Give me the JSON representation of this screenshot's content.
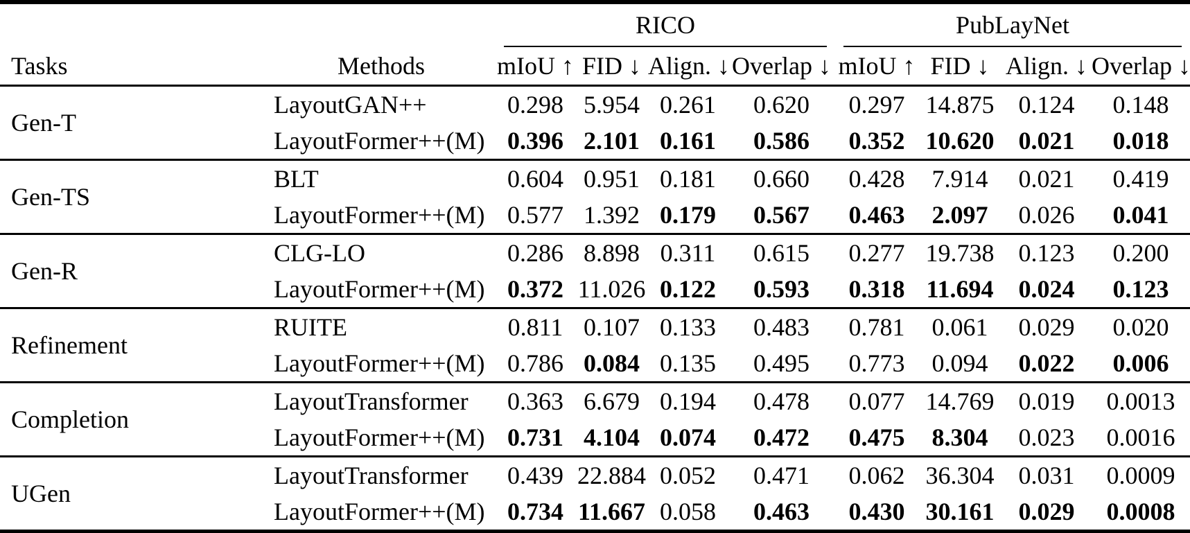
{
  "table": {
    "headers": {
      "tasks": "Tasks",
      "methods": "Methods",
      "rico": "RICO",
      "publaynet": "PubLayNet"
    },
    "metrics": [
      "mIoU ↑",
      "FID ↓",
      "Align. ↓",
      "Overlap ↓"
    ],
    "groups": [
      {
        "task": "Gen-T",
        "rows": [
          {
            "method": "LayoutGAN++",
            "rico": [
              "0.298",
              "5.954",
              "0.261",
              "0.620"
            ],
            "rico_bold": [
              false,
              false,
              false,
              false
            ],
            "publaynet": [
              "0.297",
              "14.875",
              "0.124",
              "0.148"
            ],
            "publaynet_bold": [
              false,
              false,
              false,
              false
            ]
          },
          {
            "method": "LayoutFormer++(M)",
            "rico": [
              "0.396",
              "2.101",
              "0.161",
              "0.586"
            ],
            "rico_bold": [
              true,
              true,
              true,
              true
            ],
            "publaynet": [
              "0.352",
              "10.620",
              "0.021",
              "0.018"
            ],
            "publaynet_bold": [
              true,
              true,
              true,
              true
            ]
          }
        ]
      },
      {
        "task": "Gen-TS",
        "rows": [
          {
            "method": "BLT",
            "rico": [
              "0.604",
              "0.951",
              "0.181",
              "0.660"
            ],
            "rico_bold": [
              false,
              false,
              false,
              false
            ],
            "publaynet": [
              "0.428",
              "7.914",
              "0.021",
              "0.419"
            ],
            "publaynet_bold": [
              false,
              false,
              false,
              false
            ]
          },
          {
            "method": "LayoutFormer++(M)",
            "rico": [
              "0.577",
              "1.392",
              "0.179",
              "0.567"
            ],
            "rico_bold": [
              false,
              false,
              true,
              true
            ],
            "publaynet": [
              "0.463",
              "2.097",
              "0.026",
              "0.041"
            ],
            "publaynet_bold": [
              true,
              true,
              false,
              true
            ]
          }
        ]
      },
      {
        "task": "Gen-R",
        "rows": [
          {
            "method": "CLG-LO",
            "rico": [
              "0.286",
              "8.898",
              "0.311",
              "0.615"
            ],
            "rico_bold": [
              false,
              false,
              false,
              false
            ],
            "publaynet": [
              "0.277",
              "19.738",
              "0.123",
              "0.200"
            ],
            "publaynet_bold": [
              false,
              false,
              false,
              false
            ]
          },
          {
            "method": "LayoutFormer++(M)",
            "rico": [
              "0.372",
              "11.026",
              "0.122",
              "0.593"
            ],
            "rico_bold": [
              true,
              false,
              true,
              true
            ],
            "publaynet": [
              "0.318",
              "11.694",
              "0.024",
              "0.123"
            ],
            "publaynet_bold": [
              true,
              true,
              true,
              true
            ]
          }
        ]
      },
      {
        "task": "Refinement",
        "rows": [
          {
            "method": "RUITE",
            "rico": [
              "0.811",
              "0.107",
              "0.133",
              "0.483"
            ],
            "rico_bold": [
              false,
              false,
              false,
              false
            ],
            "publaynet": [
              "0.781",
              "0.061",
              "0.029",
              "0.020"
            ],
            "publaynet_bold": [
              false,
              false,
              false,
              false
            ]
          },
          {
            "method": "LayoutFormer++(M)",
            "rico": [
              "0.786",
              "0.084",
              "0.135",
              "0.495"
            ],
            "rico_bold": [
              false,
              true,
              false,
              false
            ],
            "publaynet": [
              "0.773",
              "0.094",
              "0.022",
              "0.006"
            ],
            "publaynet_bold": [
              false,
              false,
              true,
              true
            ]
          }
        ]
      },
      {
        "task": "Completion",
        "rows": [
          {
            "method": "LayoutTransformer",
            "rico": [
              "0.363",
              "6.679",
              "0.194",
              "0.478"
            ],
            "rico_bold": [
              false,
              false,
              false,
              false
            ],
            "publaynet": [
              "0.077",
              "14.769",
              "0.019",
              "0.0013"
            ],
            "publaynet_bold": [
              false,
              false,
              false,
              false
            ]
          },
          {
            "method": "LayoutFormer++(M)",
            "rico": [
              "0.731",
              "4.104",
              "0.074",
              "0.472"
            ],
            "rico_bold": [
              true,
              true,
              true,
              true
            ],
            "publaynet": [
              "0.475",
              "8.304",
              "0.023",
              "0.0016"
            ],
            "publaynet_bold": [
              true,
              true,
              false,
              false
            ]
          }
        ]
      },
      {
        "task": "UGen",
        "rows": [
          {
            "method": "LayoutTransformer",
            "rico": [
              "0.439",
              "22.884",
              "0.052",
              "0.471"
            ],
            "rico_bold": [
              false,
              false,
              false,
              false
            ],
            "publaynet": [
              "0.062",
              "36.304",
              "0.031",
              "0.0009"
            ],
            "publaynet_bold": [
              false,
              false,
              false,
              false
            ]
          },
          {
            "method": "LayoutFormer++(M)",
            "rico": [
              "0.734",
              "11.667",
              "0.058",
              "0.463"
            ],
            "rico_bold": [
              true,
              true,
              false,
              true
            ],
            "publaynet": [
              "0.430",
              "30.161",
              "0.029",
              "0.0008"
            ],
            "publaynet_bold": [
              true,
              true,
              true,
              true
            ]
          }
        ]
      }
    ]
  }
}
